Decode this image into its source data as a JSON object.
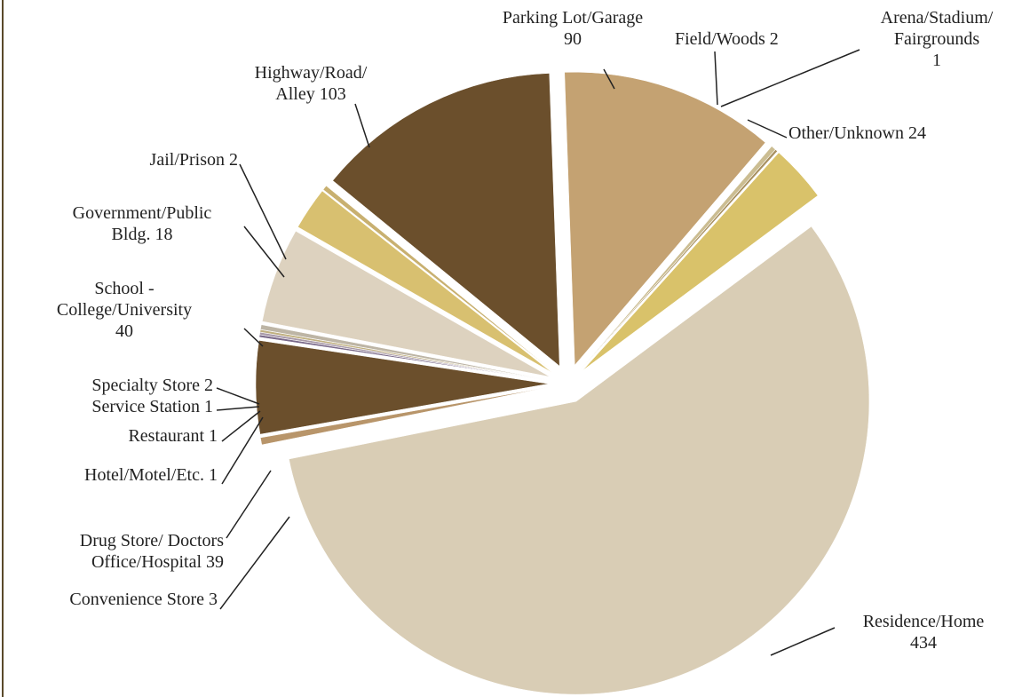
{
  "chart_data": {
    "type": "pie",
    "categories": [
      "Parking Lot/Garage",
      "Field/Woods",
      "Arena/Stadium/\nFairgrounds",
      "Other/Unknown",
      "Residence/Home",
      "Convenience Store",
      "Drug Store/ Doctors\nOffice/Hospital",
      "Hotel/Motel/Etc.",
      "Restaurant",
      "Service Station",
      "Specialty Store",
      "School -\nCollege/University",
      "Government/Public\nBldg.",
      "Jail/Prison",
      "Highway/Road/\nAlley"
    ],
    "values": [
      90,
      2,
      1,
      24,
      434,
      3,
      39,
      1,
      1,
      1,
      2,
      40,
      18,
      2,
      103
    ],
    "colors": [
      "#c4a272",
      "#cbbd92",
      "#a89060",
      "#d9c26a",
      "#d9cdb5",
      "#b8956a",
      "#6b4f2c",
      "#7a6a8a",
      "#a899a8",
      "#c0b080",
      "#bdb5a5",
      "#ddd2bf",
      "#d8c070",
      "#c8b070",
      "#6b4f2c"
    ]
  }
}
